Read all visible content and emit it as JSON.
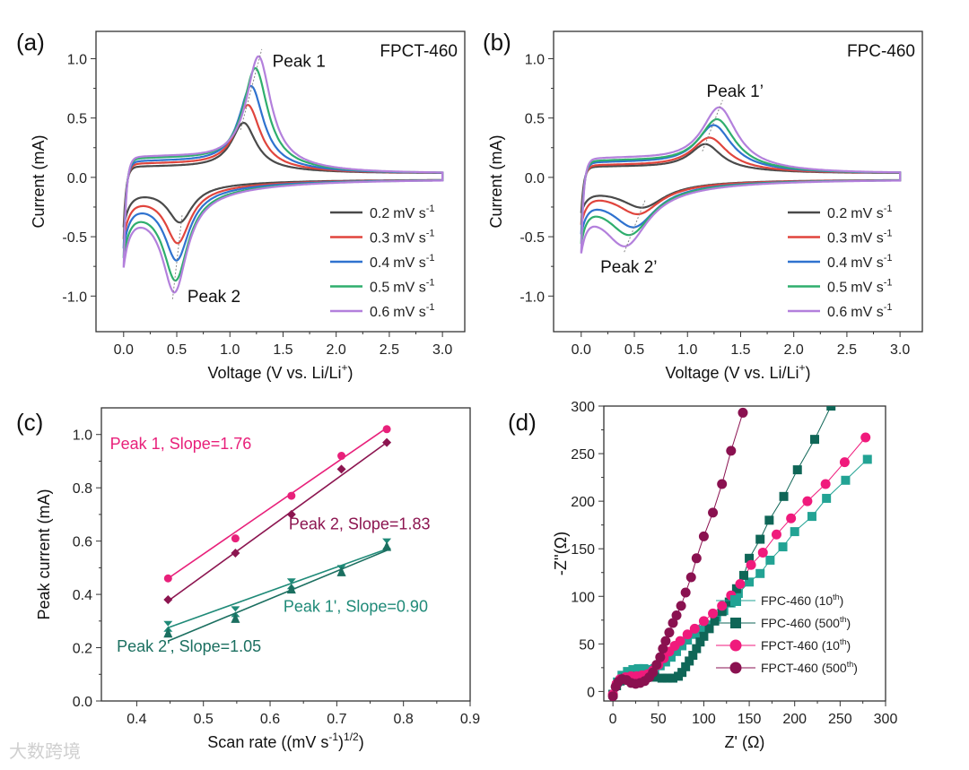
{
  "watermark": "大数跨境",
  "chart_data": [
    {
      "panel": "(a)",
      "type": "line",
      "sample": "FPCT-460",
      "xlabel": [
        "Voltage (V vs. Li/Li",
        "+",
        ")"
      ],
      "ylabel": "Current (mA)",
      "xlim": [
        -0.26,
        3.21
      ],
      "ylim": [
        -1.3,
        1.23
      ],
      "xticks": [
        "0.0",
        "0.5",
        "1.0",
        "1.5",
        "2.0",
        "2.5",
        "3.0"
      ],
      "yticks": [
        "-1.0",
        "-0.5",
        "0.0",
        "0.5",
        "1.0"
      ],
      "peak_labels": [
        {
          "text": "Peak 1",
          "at": [
            1.4,
            0.93
          ]
        },
        {
          "text": "Peak 2",
          "at": [
            0.6,
            -1.05
          ]
        }
      ],
      "legend_unit": "mV s",
      "legend_exp": "-1",
      "series": [
        {
          "name": "0.2",
          "color": "#4a4a4a",
          "anodic_peak": [
            1.13,
            0.46
          ],
          "anodic_width": 0.14,
          "cathodic_peak": [
            0.53,
            -0.38
          ],
          "cathodic_width": 0.14,
          "start": -0.42
        },
        {
          "name": "0.3",
          "color": "#e0453d",
          "anodic_peak": [
            1.17,
            0.61
          ],
          "anodic_width": 0.14,
          "cathodic_peak": [
            0.51,
            -0.555
          ],
          "cathodic_width": 0.14,
          "start": -0.52
        },
        {
          "name": "0.4",
          "color": "#2f72cf",
          "anodic_peak": [
            1.2,
            0.77
          ],
          "anodic_width": 0.14,
          "cathodic_peak": [
            0.5,
            -0.7
          ],
          "cathodic_width": 0.14,
          "start": -0.6
        },
        {
          "name": "0.5",
          "color": "#2fae6d",
          "anodic_peak": [
            1.24,
            0.92
          ],
          "anodic_width": 0.14,
          "cathodic_peak": [
            0.49,
            -0.87
          ],
          "cathodic_width": 0.14,
          "start": -0.68
        },
        {
          "name": "0.6",
          "color": "#b380dc",
          "anodic_peak": [
            1.27,
            1.02
          ],
          "anodic_width": 0.14,
          "cathodic_peak": [
            0.48,
            -0.97
          ],
          "cathodic_width": 0.14,
          "start": -0.76
        }
      ]
    },
    {
      "panel": "(b)",
      "type": "line",
      "sample": "FPC-460",
      "xlabel": [
        "Voltage (V vs. Li/Li",
        "+",
        ")"
      ],
      "ylabel": "Current (mA)",
      "xlim": [
        -0.26,
        3.21
      ],
      "ylim": [
        -1.3,
        1.23
      ],
      "xticks": [
        "0.0",
        "0.5",
        "1.0",
        "1.5",
        "2.0",
        "2.5",
        "3.0"
      ],
      "yticks": [
        "-1.0",
        "-0.5",
        "0.0",
        "0.5",
        "1.0"
      ],
      "peak_labels": [
        {
          "text": "Peak 1’",
          "at": [
            1.18,
            0.68
          ]
        },
        {
          "text": "Peak 2’",
          "at": [
            0.18,
            -0.8
          ]
        }
      ],
      "legend_unit": "mV s",
      "legend_exp": "-1",
      "series": [
        {
          "name": "0.2",
          "color": "#4a4a4a",
          "anodic_peak": [
            1.17,
            0.28
          ],
          "anodic_width": 0.18,
          "cathodic_peak": [
            0.58,
            -0.255
          ],
          "cathodic_width": 0.25,
          "start": -0.3
        },
        {
          "name": "0.3",
          "color": "#e0453d",
          "anodic_peak": [
            1.21,
            0.335
          ],
          "anodic_width": 0.2,
          "cathodic_peak": [
            0.54,
            -0.31
          ],
          "cathodic_width": 0.25,
          "start": -0.4
        },
        {
          "name": "0.4",
          "color": "#2f72cf",
          "anodic_peak": [
            1.25,
            0.44
          ],
          "anodic_width": 0.2,
          "cathodic_peak": [
            0.5,
            -0.42
          ],
          "cathodic_width": 0.25,
          "start": -0.48
        },
        {
          "name": "0.5",
          "color": "#2fae6d",
          "anodic_peak": [
            1.28,
            0.49
          ],
          "anodic_width": 0.2,
          "cathodic_peak": [
            0.46,
            -0.485
          ],
          "cathodic_width": 0.25,
          "start": -0.56
        },
        {
          "name": "0.6",
          "color": "#b380dc",
          "anodic_peak": [
            1.3,
            0.59
          ],
          "anodic_width": 0.2,
          "cathodic_peak": [
            0.42,
            -0.58
          ],
          "cathodic_width": 0.25,
          "start": -0.64
        }
      ]
    },
    {
      "panel": "(c)",
      "type": "scatter",
      "xlabel": [
        "Scan rate ((mV s",
        "-1",
        ")",
        "1/2",
        ")"
      ],
      "ylabel": "Peak current (mA)",
      "xlim": [
        0.347,
        0.9
      ],
      "ylim": [
        0,
        1.1
      ],
      "xticks": [
        "0.4",
        "0.5",
        "0.6",
        "0.7",
        "0.8",
        "0.9"
      ],
      "yticks": [
        "0.0",
        "0.2",
        "0.4",
        "0.6",
        "0.8",
        "1.0"
      ],
      "x": [
        0.447,
        0.548,
        0.632,
        0.707,
        0.775
      ],
      "series": [
        {
          "name": "Peak 1, Slope=1.76",
          "color": "#e8207a",
          "marker": "circle",
          "values": [
            0.46,
            0.61,
            0.77,
            0.92,
            1.02
          ],
          "fit": [
            0.46,
            1.025
          ],
          "label_at": [
            0.36,
            0.945
          ]
        },
        {
          "name": "Peak 2, Slope=1.83",
          "color": "#8c1550",
          "marker": "diamond",
          "values": [
            0.38,
            0.555,
            0.7,
            0.87,
            0.97
          ],
          "fit": [
            0.375,
            0.97
          ],
          "label_at": [
            0.628,
            0.645
          ]
        },
        {
          "name": "Peak 1', Slope=0.90",
          "color": "#1f8a78",
          "marker": "hourglass",
          "values": [
            0.28,
            0.335,
            0.44,
            0.49,
            0.59
          ],
          "fit": [
            0.275,
            0.57
          ],
          "label_at": [
            0.62,
            0.335
          ]
        },
        {
          "name": "Peak 2', Slope=1.05",
          "color": "#1b6f60",
          "marker": "triangle",
          "values": [
            0.255,
            0.31,
            0.42,
            0.485,
            0.58
          ],
          "fit": [
            0.225,
            0.565
          ],
          "label_at": [
            0.37,
            0.185
          ]
        }
      ]
    },
    {
      "panel": "(d)",
      "type": "scatter",
      "xlabel": [
        "Z' (Ω)"
      ],
      "ylabel": "-Z''(Ω)",
      "xlim": [
        -10,
        300
      ],
      "ylim": [
        -10,
        300
      ],
      "xticks": [
        "0",
        "50",
        "100",
        "150",
        "200",
        "250",
        "300"
      ],
      "yticks": [
        "0",
        "50",
        "100",
        "150",
        "200",
        "250",
        "300"
      ],
      "series": [
        {
          "name": "FPC-460 (10",
          "sup": "th",
          "color": "#22a394",
          "marker": "square",
          "points": [
            [
              0,
              -3
            ],
            [
              5,
              10
            ],
            [
              10,
              17
            ],
            [
              16,
              21
            ],
            [
              22,
              23
            ],
            [
              28,
              24
            ],
            [
              34,
              24
            ],
            [
              40,
              23
            ],
            [
              46,
              24
            ],
            [
              52,
              27
            ],
            [
              58,
              31
            ],
            [
              64,
              36
            ],
            [
              70,
              42
            ],
            [
              76,
              48
            ],
            [
              82,
              54
            ],
            [
              90,
              60
            ],
            [
              98,
              65
            ],
            [
              106,
              70
            ],
            [
              114,
              78
            ],
            [
              122,
              85
            ],
            [
              130,
              93
            ],
            [
              138,
              103
            ],
            [
              150,
              115
            ],
            [
              162,
              124
            ],
            [
              173,
              138
            ],
            [
              187,
              152
            ],
            [
              200,
              168
            ],
            [
              219,
              184
            ],
            [
              235,
              203
            ],
            [
              256,
              222
            ],
            [
              280,
              244
            ]
          ]
        },
        {
          "name": "FPC-460 (500",
          "sup": "th",
          "color": "#0f6657",
          "marker": "square",
          "points": [
            [
              0,
              -3
            ],
            [
              4,
              6
            ],
            [
              8,
              11
            ],
            [
              14,
              14
            ],
            [
              22,
              16
            ],
            [
              30,
              16
            ],
            [
              38,
              15
            ],
            [
              46,
              15
            ],
            [
              54,
              14
            ],
            [
              60,
              14
            ],
            [
              66,
              14
            ],
            [
              72,
              16
            ],
            [
              76,
              20
            ],
            [
              80,
              26
            ],
            [
              84,
              32
            ],
            [
              88,
              38
            ],
            [
              92,
              45
            ],
            [
              96,
              52
            ],
            [
              100,
              58
            ],
            [
              106,
              66
            ],
            [
              112,
              74
            ],
            [
              120,
              84
            ],
            [
              128,
              94
            ],
            [
              136,
              108
            ],
            [
              144,
              122
            ],
            [
              150,
              140
            ],
            [
              162,
              160
            ],
            [
              172,
              180
            ],
            [
              188,
              205
            ],
            [
              203,
              233
            ],
            [
              222,
              265
            ],
            [
              240,
              300
            ]
          ]
        },
        {
          "name": "FPCT-460 (10",
          "sup": "th",
          "color": "#f01a7c",
          "marker": "circle",
          "points": [
            [
              0,
              -3
            ],
            [
              4,
              8
            ],
            [
              8,
              13
            ],
            [
              14,
              15
            ],
            [
              20,
              16
            ],
            [
              26,
              16
            ],
            [
              32,
              17
            ],
            [
              38,
              18
            ],
            [
              44,
              22
            ],
            [
              50,
              28
            ],
            [
              56,
              35
            ],
            [
              62,
              42
            ],
            [
              68,
              48
            ],
            [
              74,
              53
            ],
            [
              82,
              60
            ],
            [
              90,
              66
            ],
            [
              100,
              74
            ],
            [
              110,
              82
            ],
            [
              120,
              90
            ],
            [
              130,
              101
            ],
            [
              140,
              113
            ],
            [
              152,
              133
            ],
            [
              165,
              146
            ],
            [
              180,
              165
            ],
            [
              196,
              182
            ],
            [
              214,
              200
            ],
            [
              234,
              218
            ],
            [
              255,
              241
            ],
            [
              278,
              267
            ]
          ]
        },
        {
          "name": "FPCT-460 (500",
          "sup": "th",
          "color": "#8a1150",
          "marker": "circle",
          "points": [
            [
              0,
              -5
            ],
            [
              3,
              5
            ],
            [
              6,
              10
            ],
            [
              10,
              13
            ],
            [
              15,
              12
            ],
            [
              20,
              9
            ],
            [
              25,
              8
            ],
            [
              30,
              9
            ],
            [
              35,
              11
            ],
            [
              40,
              15
            ],
            [
              44,
              20
            ],
            [
              48,
              28
            ],
            [
              52,
              36
            ],
            [
              55,
              45
            ],
            [
              58,
              53
            ],
            [
              62,
              62
            ],
            [
              66,
              72
            ],
            [
              70,
              80
            ],
            [
              75,
              90
            ],
            [
              80,
              104
            ],
            [
              86,
              120
            ],
            [
              92,
              140
            ],
            [
              100,
              163
            ],
            [
              110,
              188
            ],
            [
              120,
              218
            ],
            [
              130,
              253
            ],
            [
              143,
              293
            ]
          ]
        }
      ]
    }
  ]
}
